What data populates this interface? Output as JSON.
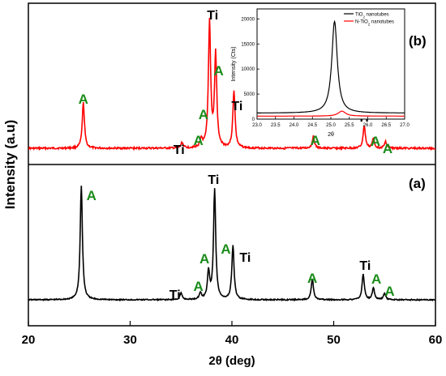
{
  "chart_data": [
    {
      "type": "line",
      "title": "",
      "xlabel": "2θ (deg)",
      "ylabel": "Intensity (a.u)",
      "xlim": [
        20,
        60
      ],
      "x_ticks": [
        20,
        30,
        40,
        50,
        60
      ],
      "grid": false,
      "panels": [
        {
          "label": "(b)",
          "series": [
            {
              "color": "#ff0000",
              "peaks": [
                {
                  "x": 25.4,
                  "height": 0.34
                },
                {
                  "x": 35.1,
                  "height": 0.04
                },
                {
                  "x": 37.0,
                  "height": 0.06
                },
                {
                  "x": 37.8,
                  "height": 0.94
                },
                {
                  "x": 38.4,
                  "height": 0.7
                },
                {
                  "x": 40.2,
                  "height": 0.43
                },
                {
                  "x": 48.0,
                  "height": 0.09
                },
                {
                  "x": 53.0,
                  "height": 0.17
                },
                {
                  "x": 53.9,
                  "height": 0.07
                },
                {
                  "x": 55.1,
                  "height": 0.05
                }
              ]
            }
          ],
          "annotations": [
            {
              "text": "A",
              "x": 25.4
            },
            {
              "text": "Ti",
              "x": 34.8
            },
            {
              "text": "A",
              "x": 36.7
            },
            {
              "text": "A",
              "x": 37.2
            },
            {
              "text": "Ti",
              "x": 38.1
            },
            {
              "text": "A",
              "x": 38.7
            },
            {
              "text": "Ti",
              "x": 40.5
            },
            {
              "text": "A",
              "x": 48.2
            },
            {
              "text": "Ti",
              "x": 52.9
            },
            {
              "text": "A",
              "x": 54.1
            },
            {
              "text": "A",
              "x": 55.3
            }
          ]
        },
        {
          "label": "(a)",
          "series": [
            {
              "color": "#000000",
              "peaks": [
                {
                  "x": 25.2,
                  "height": 0.88
                },
                {
                  "x": 35.0,
                  "height": 0.05
                },
                {
                  "x": 36.9,
                  "height": 0.05
                },
                {
                  "x": 37.7,
                  "height": 0.21
                },
                {
                  "x": 38.3,
                  "height": 0.85
                },
                {
                  "x": 40.1,
                  "height": 0.42
                },
                {
                  "x": 47.9,
                  "height": 0.16
                },
                {
                  "x": 52.9,
                  "height": 0.2
                },
                {
                  "x": 53.9,
                  "height": 0.09
                },
                {
                  "x": 55.0,
                  "height": 0.05
                }
              ]
            }
          ],
          "annotations": [
            {
              "text": "A",
              "x": 26.2
            },
            {
              "text": "Ti",
              "x": 34.4
            },
            {
              "text": "A",
              "x": 36.7
            },
            {
              "text": "A",
              "x": 37.3
            },
            {
              "text": "Ti",
              "x": 38.2
            },
            {
              "text": "A",
              "x": 39.4
            },
            {
              "text": "Ti",
              "x": 41.3
            },
            {
              "text": "A",
              "x": 47.9
            },
            {
              "text": "Ti",
              "x": 53.1
            },
            {
              "text": "A",
              "x": 54.2
            },
            {
              "text": "A",
              "x": 55.5
            }
          ]
        }
      ]
    },
    {
      "type": "line",
      "title": "",
      "xlabel": "2θ",
      "ylabel": "Intensity (Cts)",
      "xlim": [
        23.0,
        27.0
      ],
      "ylim": [
        0,
        22000
      ],
      "x_ticks": [
        23.0,
        23.5,
        24.0,
        24.5,
        25.0,
        25.5,
        26.0,
        26.5,
        27.0
      ],
      "y_ticks": [
        0,
        5000,
        10000,
        15000,
        20000
      ],
      "legend": "top-right",
      "series": [
        {
          "name": "TiO2 nanotubes",
          "color": "#000000",
          "peak_x": 25.1,
          "peak_y": 19500,
          "baseline": 1200
        },
        {
          "name": "N-TiO2 nanotubes",
          "color": "#ff0000",
          "peak_x": 25.3,
          "peak_y": 1600,
          "baseline": 600
        }
      ]
    }
  ],
  "text": {
    "xlabel": "2θ (deg)",
    "ylabel": "Intensity (a.u)",
    "panel_b": "(b)",
    "panel_a": "(a)",
    "legend_tio2_prefix": "TiO",
    "legend_tio2_sub": "2",
    "legend_tio2_suffix": " nanotubes",
    "legend_ntio2_prefix": "N-TiO",
    "legend_ntio2_sub": "2",
    "legend_ntio2_suffix": " nanotubes",
    "inset_xlabel": "2θ",
    "inset_ylabel": "Intensity (Cts)"
  },
  "colors": {
    "anatase_label": "#1a8c1a",
    "titanium_label": "#000000",
    "sample_b": "#ff0000",
    "sample_a": "#000000"
  }
}
